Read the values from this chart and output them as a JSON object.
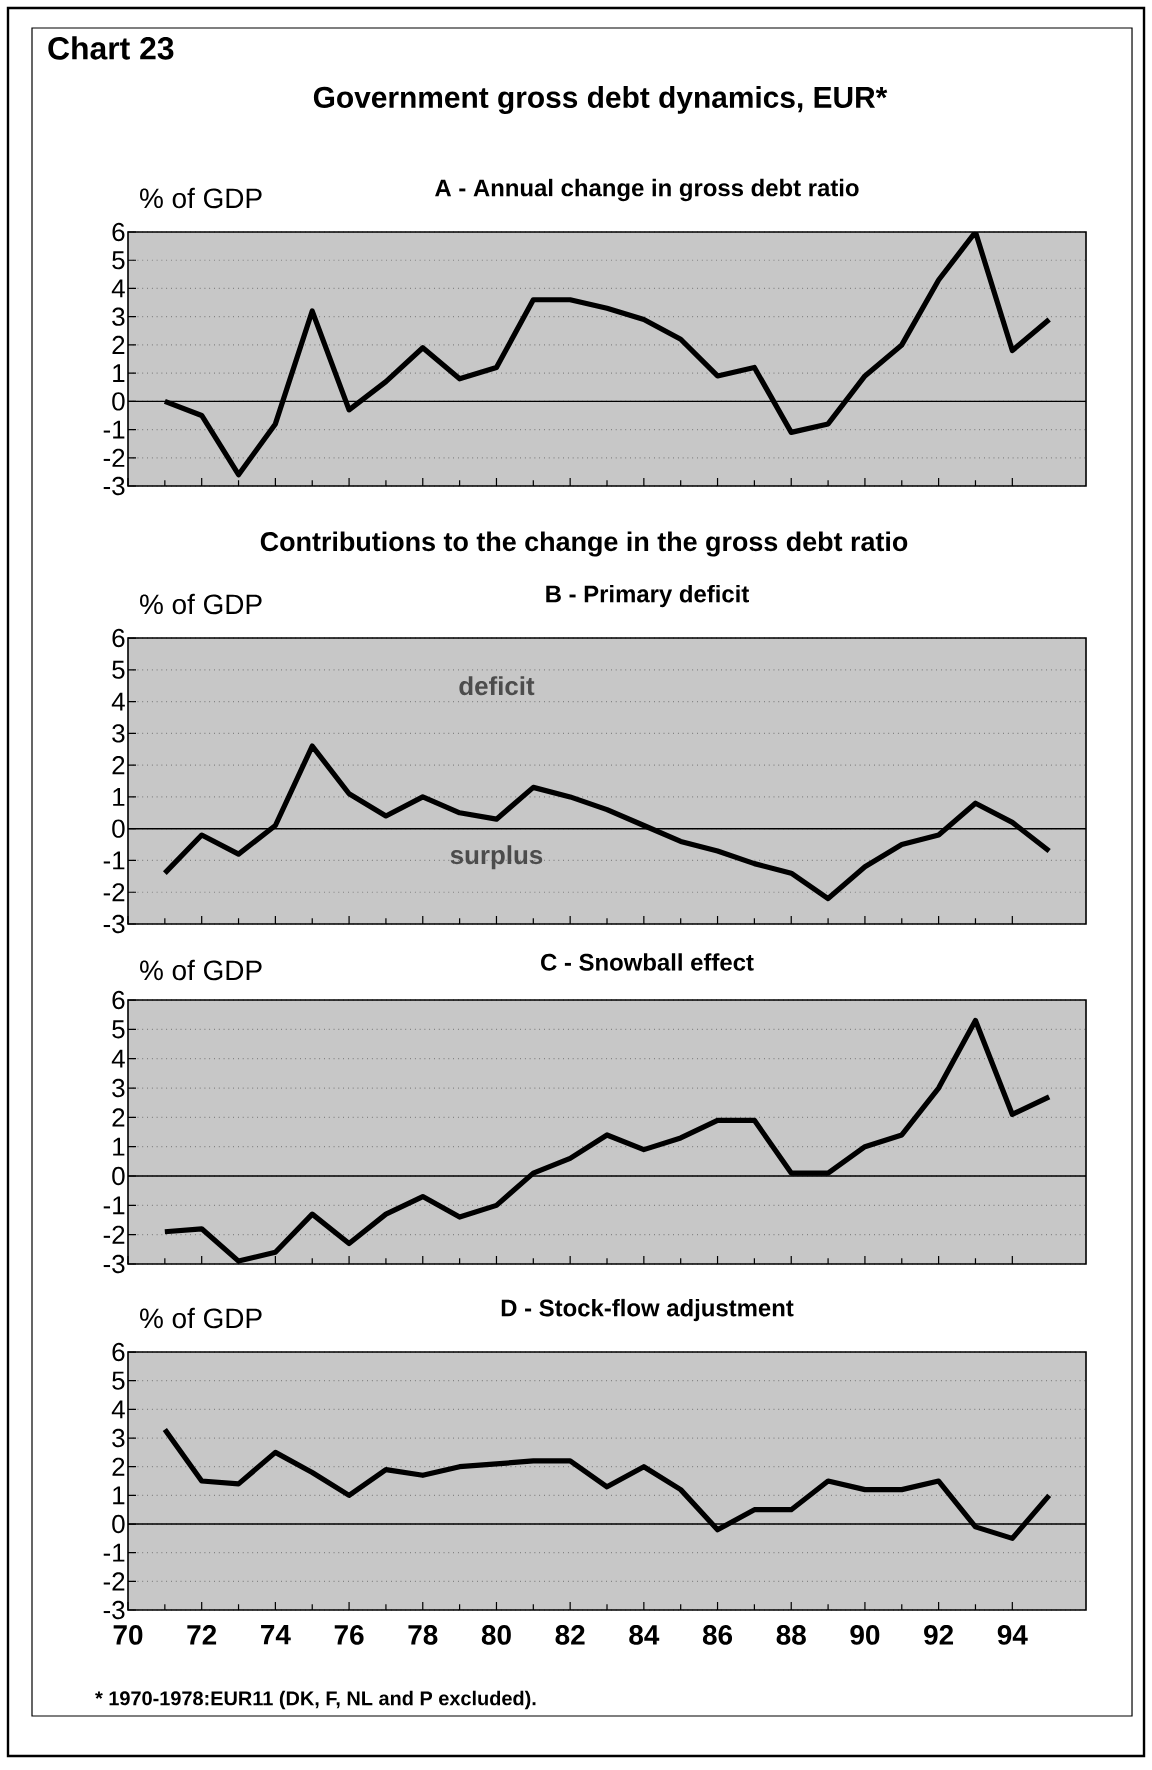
{
  "chart_data": [
    {
      "type": "line",
      "title": "A - Annual change in gross debt ratio",
      "ylabel": "% of GDP",
      "annotations": [
        "Chart 23",
        "Government gross debt dynamics, EUR*"
      ],
      "x": [
        71,
        72,
        73,
        74,
        75,
        76,
        77,
        78,
        79,
        80,
        81,
        82,
        83,
        84,
        85,
        86,
        87,
        88,
        89,
        90,
        91,
        92,
        93,
        94,
        95
      ],
      "series": [
        {
          "color": "#000000",
          "values": [
            0,
            -0.5,
            -2.6,
            -0.8,
            3.2,
            -0.3,
            0.7,
            1.9,
            0.8,
            1.2,
            3.6,
            3.6,
            3.3,
            2.9,
            2.2,
            0.9,
            1.2,
            -1.1,
            -0.8,
            0.9,
            2.0,
            4.3,
            6.0,
            1.8,
            2.9
          ]
        }
      ],
      "xlim": [
        70,
        96
      ],
      "ylim": [
        -3,
        6
      ],
      "yticks": [
        -3,
        -2,
        -1,
        0,
        1,
        2,
        3,
        4,
        5,
        6
      ],
      "xticks": [
        {
          "value": 70,
          "label": null
        },
        {
          "value": 72,
          "label": null
        },
        {
          "value": 74,
          "label": null
        },
        {
          "value": 76,
          "label": null
        },
        {
          "value": 78,
          "label": null
        },
        {
          "value": 80,
          "label": null
        },
        {
          "value": 82,
          "label": null
        },
        {
          "value": 84,
          "label": null
        },
        {
          "value": 86,
          "label": null
        },
        {
          "value": 88,
          "label": null
        },
        {
          "value": 90,
          "label": null
        },
        {
          "value": 92,
          "label": null
        },
        {
          "value": 94,
          "label": null
        }
      ],
      "tick_labels": "y",
      "grid": "y",
      "ref_lines": [
        {
          "axis": "y",
          "value": 0
        }
      ]
    },
    {
      "type": "line",
      "title": "B - Primary deficit",
      "ylabel": "% of GDP",
      "annotations": [
        "Contributions to the change in the gross debt ratio",
        "deficit",
        "surplus"
      ],
      "x": [
        71,
        72,
        73,
        74,
        75,
        76,
        77,
        78,
        79,
        80,
        81,
        82,
        83,
        84,
        85,
        86,
        87,
        88,
        89,
        90,
        91,
        92,
        93,
        94,
        95
      ],
      "series": [
        {
          "color": "#000000",
          "values": [
            -1.4,
            -0.2,
            -0.8,
            0.1,
            2.6,
            1.1,
            0.4,
            1.0,
            0.5,
            0.3,
            1.3,
            1.0,
            0.6,
            0.1,
            -0.4,
            -0.7,
            -1.1,
            -1.4,
            -2.2,
            -1.2,
            -0.5,
            -0.2,
            0.8,
            0.2,
            -0.7
          ]
        }
      ],
      "xlim": [
        70,
        96
      ],
      "ylim": [
        -3,
        6
      ],
      "yticks": [
        -3,
        -2,
        -1,
        0,
        1,
        2,
        3,
        4,
        5,
        6
      ],
      "xticks": [
        {
          "value": 70,
          "label": null
        },
        {
          "value": 72,
          "label": null
        },
        {
          "value": 74,
          "label": null
        },
        {
          "value": 76,
          "label": null
        },
        {
          "value": 78,
          "label": null
        },
        {
          "value": 80,
          "label": null
        },
        {
          "value": 82,
          "label": null
        },
        {
          "value": 84,
          "label": null
        },
        {
          "value": 86,
          "label": null
        },
        {
          "value": 88,
          "label": null
        },
        {
          "value": 90,
          "label": null
        },
        {
          "value": 92,
          "label": null
        },
        {
          "value": 94,
          "label": null
        }
      ],
      "tick_labels": "y",
      "grid": "y",
      "ref_lines": [
        {
          "axis": "y",
          "value": 0
        }
      ]
    },
    {
      "type": "line",
      "title": "C - Snowball effect",
      "ylabel": "% of GDP",
      "x": [
        71,
        72,
        73,
        74,
        75,
        76,
        77,
        78,
        79,
        80,
        81,
        82,
        83,
        84,
        85,
        86,
        87,
        88,
        89,
        90,
        91,
        92,
        93,
        94,
        95
      ],
      "series": [
        {
          "color": "#000000",
          "values": [
            -1.9,
            -1.8,
            -2.9,
            -2.6,
            -1.3,
            -2.3,
            -1.3,
            -0.7,
            -1.4,
            -1.0,
            0.1,
            0.6,
            1.4,
            0.9,
            1.3,
            1.9,
            1.9,
            0.1,
            0.1,
            1.0,
            1.4,
            3.0,
            5.3,
            2.1,
            2.7
          ]
        }
      ],
      "xlim": [
        70,
        96
      ],
      "ylim": [
        -3,
        6
      ],
      "yticks": [
        -3,
        -2,
        -1,
        0,
        1,
        2,
        3,
        4,
        5,
        6
      ],
      "xticks": [
        {
          "value": 70,
          "label": null
        },
        {
          "value": 72,
          "label": null
        },
        {
          "value": 74,
          "label": null
        },
        {
          "value": 76,
          "label": null
        },
        {
          "value": 78,
          "label": null
        },
        {
          "value": 80,
          "label": null
        },
        {
          "value": 82,
          "label": null
        },
        {
          "value": 84,
          "label": null
        },
        {
          "value": 86,
          "label": null
        },
        {
          "value": 88,
          "label": null
        },
        {
          "value": 90,
          "label": null
        },
        {
          "value": 92,
          "label": null
        },
        {
          "value": 94,
          "label": null
        }
      ],
      "tick_labels": "y",
      "grid": "y",
      "ref_lines": [
        {
          "axis": "y",
          "value": 0
        }
      ]
    },
    {
      "type": "line",
      "title": "D - Stock-flow adjustment",
      "ylabel": "% of GDP",
      "annotations": [
        "* 1970-1978:EUR11 (DK,  F, NL  and P excluded)."
      ],
      "x": [
        71,
        72,
        73,
        74,
        75,
        76,
        77,
        78,
        79,
        80,
        81,
        82,
        83,
        84,
        85,
        86,
        87,
        88,
        89,
        90,
        91,
        92,
        93,
        94,
        95
      ],
      "series": [
        {
          "color": "#000000",
          "values": [
            3.3,
            1.5,
            1.4,
            2.5,
            1.8,
            1.0,
            1.9,
            1.7,
            2.0,
            2.1,
            2.2,
            2.2,
            1.3,
            2.0,
            1.2,
            -0.2,
            0.5,
            0.5,
            1.5,
            1.2,
            1.2,
            1.5,
            -0.1,
            -0.5,
            1.0
          ]
        }
      ],
      "xlim": [
        70,
        96
      ],
      "ylim": [
        -3,
        6
      ],
      "yticks": [
        -3,
        -2,
        -1,
        0,
        1,
        2,
        3,
        4,
        5,
        6
      ],
      "xticks": [
        70,
        72,
        74,
        76,
        78,
        80,
        82,
        84,
        86,
        88,
        90,
        92,
        94
      ],
      "grid": "y",
      "ref_lines": [
        {
          "axis": "y",
          "value": 0
        }
      ]
    }
  ]
}
